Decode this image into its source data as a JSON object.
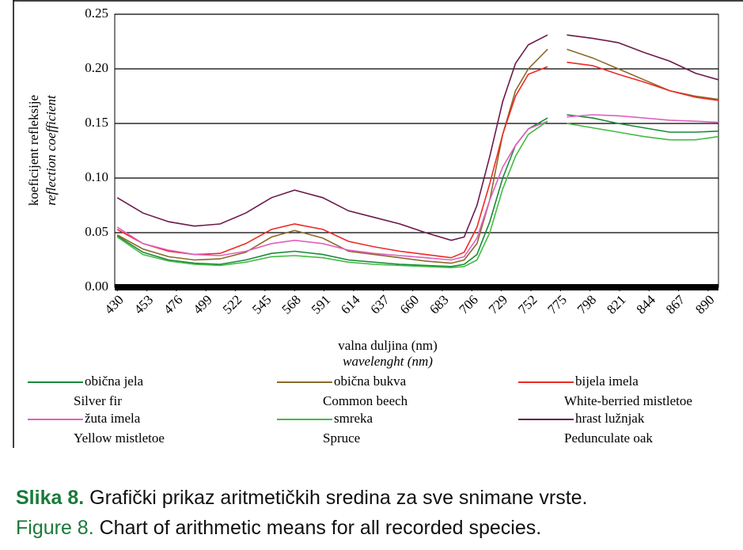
{
  "chart_data": {
    "type": "line",
    "y_label": "koeficijent refleksije",
    "y_label_en": "reflection coefficient",
    "x_label": "valna duljina (nm)",
    "x_label_en": "wavelenght (nm)",
    "x": [
      430,
      450,
      470,
      490,
      510,
      530,
      550,
      568,
      590,
      610,
      630,
      650,
      670,
      690,
      700,
      710,
      720,
      730,
      740,
      750,
      765,
      772,
      780,
      800,
      820,
      840,
      860,
      880,
      898
    ],
    "xlim": [
      428,
      898
    ],
    "xticks": [
      430,
      453,
      476,
      499,
      522,
      545,
      568,
      591,
      614,
      637,
      660,
      683,
      706,
      729,
      752,
      775,
      798,
      821,
      844,
      867,
      890
    ],
    "ylim": [
      0,
      0.25
    ],
    "yticks": [
      {
        "value": 0,
        "label": "0.00"
      },
      0.05,
      {
        "value": 0.1,
        "label": "0.10"
      },
      0.15,
      {
        "value": 0.2,
        "label": "0.20"
      },
      0.25
    ],
    "grid": true,
    "series": [
      {
        "name": "obična jela",
        "name_en": "Silver fir",
        "color": "#1a8a3a",
        "values": [
          0.047,
          0.032,
          0.025,
          0.022,
          0.021,
          0.025,
          0.031,
          0.033,
          0.03,
          0.025,
          0.023,
          0.021,
          0.02,
          0.019,
          0.021,
          0.03,
          0.06,
          0.1,
          0.13,
          0.145,
          0.155,
          null,
          0.158,
          0.155,
          0.15,
          0.146,
          0.142,
          0.142,
          0.143
        ]
      },
      {
        "name": "obična bukva",
        "name_en": "Common beech",
        "color": "#8b6a2a",
        "values": [
          0.048,
          0.035,
          0.028,
          0.025,
          0.026,
          0.032,
          0.046,
          0.052,
          0.045,
          0.033,
          0.03,
          0.027,
          0.024,
          0.022,
          0.025,
          0.04,
          0.08,
          0.14,
          0.18,
          0.2,
          0.218,
          null,
          0.218,
          0.21,
          0.2,
          0.19,
          0.18,
          0.175,
          0.172
        ]
      },
      {
        "name": "bijela imela",
        "name_en": "White-berried mistletoe",
        "color": "#ee2a24",
        "values": [
          0.053,
          0.04,
          0.033,
          0.03,
          0.031,
          0.04,
          0.053,
          0.058,
          0.053,
          0.042,
          0.037,
          0.033,
          0.03,
          0.027,
          0.032,
          0.055,
          0.095,
          0.14,
          0.175,
          0.195,
          0.202,
          null,
          0.206,
          0.203,
          0.195,
          0.188,
          0.18,
          0.174,
          0.171
        ]
      },
      {
        "name": "žuta imela",
        "name_en": "Yellow mistletoe",
        "color": "#e060c0",
        "values": [
          0.055,
          0.04,
          0.034,
          0.03,
          0.029,
          0.033,
          0.04,
          0.043,
          0.04,
          0.034,
          0.031,
          0.029,
          0.027,
          0.025,
          0.028,
          0.045,
          0.08,
          0.11,
          0.13,
          0.145,
          0.152,
          null,
          0.156,
          0.158,
          0.157,
          0.155,
          0.153,
          0.152,
          0.151
        ]
      },
      {
        "name": "smreka",
        "name_en": "Spruce",
        "color": "#44bb44",
        "values": [
          0.046,
          0.03,
          0.024,
          0.021,
          0.02,
          0.023,
          0.028,
          0.029,
          0.027,
          0.023,
          0.021,
          0.02,
          0.019,
          0.018,
          0.019,
          0.025,
          0.05,
          0.09,
          0.12,
          0.14,
          0.152,
          null,
          0.15,
          0.146,
          0.142,
          0.138,
          0.135,
          0.135,
          0.138
        ]
      },
      {
        "name": "hrast lužnjak",
        "name_en": "Pedunculate oak",
        "color": "#6b1a4a",
        "values": [
          0.082,
          0.068,
          0.06,
          0.056,
          0.058,
          0.068,
          0.082,
          0.089,
          0.082,
          0.07,
          0.064,
          0.058,
          0.05,
          0.043,
          0.046,
          0.075,
          0.12,
          0.17,
          0.205,
          0.222,
          0.231,
          null,
          0.231,
          0.228,
          0.224,
          0.215,
          0.207,
          0.196,
          0.19
        ]
      }
    ]
  },
  "caption": {
    "label": "Slika 8.",
    "text": "Grafički prikaz aritmetičkih sredina za sve snimane vrste.",
    "label_en": "Figure 8.",
    "text_en": "Chart of arithmetic means for all recorded species."
  }
}
